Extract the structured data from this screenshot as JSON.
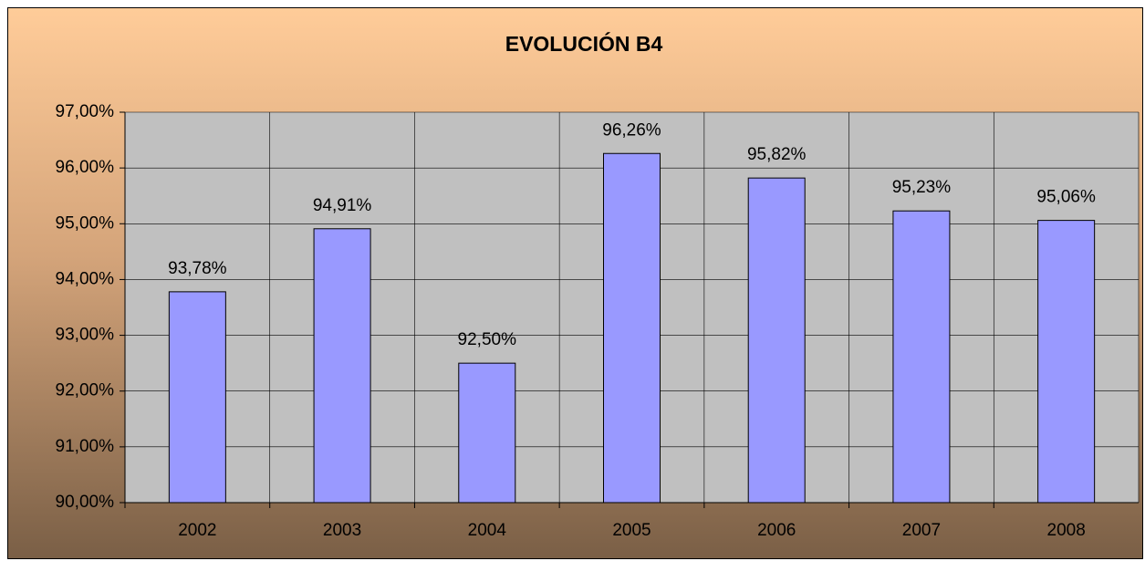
{
  "chart_data": {
    "type": "bar",
    "title": "EVOLUCIÓN B4",
    "categories": [
      "2002",
      "2003",
      "2004",
      "2005",
      "2006",
      "2007",
      "2008"
    ],
    "values": [
      93.78,
      94.91,
      92.5,
      96.26,
      95.82,
      95.23,
      95.06
    ],
    "value_labels": [
      "93,78%",
      "94,91%",
      "92,50%",
      "96,26%",
      "95,82%",
      "95,23%",
      "95,06%"
    ],
    "color": "#9999ff",
    "ylim": [
      90,
      97
    ],
    "yticks": [
      {
        "value": 90,
        "label": "90,00%"
      },
      {
        "value": 91,
        "label": "91,00%"
      },
      {
        "value": 92,
        "label": "92,00%"
      },
      {
        "value": 93,
        "label": "93,00%"
      },
      {
        "value": 94,
        "label": "94,00%"
      },
      {
        "value": 95,
        "label": "95,00%"
      },
      {
        "value": 96,
        "label": "96,00%"
      },
      {
        "value": 97,
        "label": "97,00%"
      }
    ],
    "grid": true
  }
}
